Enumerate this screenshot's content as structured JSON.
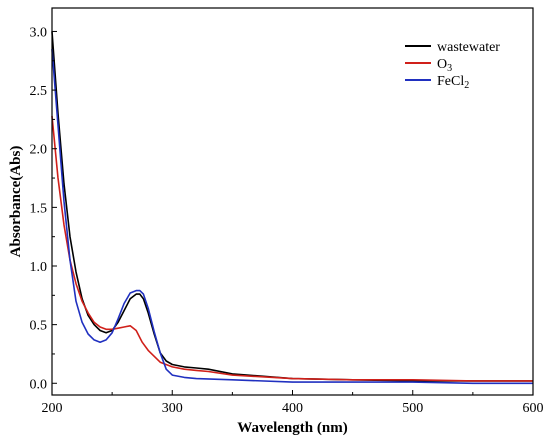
{
  "chart_data": {
    "type": "line",
    "title": "",
    "xlabel": "Wavelength (nm)",
    "ylabel": "Absorbance(Abs)",
    "xlim": [
      200,
      600
    ],
    "ylim": [
      -0.1,
      3.2
    ],
    "x_ticks": [
      200,
      300,
      400,
      500,
      600
    ],
    "y_ticks": [
      0.0,
      0.5,
      1.0,
      1.5,
      2.0,
      2.5,
      3.0
    ],
    "x_tick_labels": [
      "200",
      "300",
      "400",
      "500",
      "600"
    ],
    "y_tick_labels": [
      "0.0",
      "0.5",
      "1.0",
      "1.5",
      "2.0",
      "2.5",
      "3.0"
    ],
    "grid": false,
    "legend_position": "top-right",
    "series": [
      {
        "name": "wastewater",
        "color": "#000000",
        "x": [
          200,
          205,
          210,
          215,
          220,
          225,
          230,
          235,
          240,
          245,
          250,
          255,
          260,
          265,
          270,
          273,
          276,
          280,
          285,
          290,
          295,
          300,
          310,
          320,
          330,
          350,
          400,
          450,
          500,
          550,
          600
        ],
        "y": [
          3.0,
          2.3,
          1.7,
          1.25,
          0.95,
          0.72,
          0.58,
          0.5,
          0.45,
          0.43,
          0.45,
          0.52,
          0.62,
          0.72,
          0.76,
          0.76,
          0.72,
          0.6,
          0.42,
          0.26,
          0.19,
          0.16,
          0.14,
          0.13,
          0.12,
          0.08,
          0.04,
          0.03,
          0.02,
          0.02,
          0.02
        ]
      },
      {
        "name": "O3",
        "label_base": "O",
        "label_sub": "3",
        "color": "#d0201a",
        "x": [
          200,
          205,
          210,
          215,
          220,
          225,
          230,
          235,
          240,
          245,
          250,
          255,
          260,
          265,
          270,
          275,
          280,
          290,
          300,
          310,
          320,
          330,
          350,
          400,
          450,
          500,
          550,
          600
        ],
        "y": [
          2.28,
          1.75,
          1.35,
          1.05,
          0.85,
          0.7,
          0.6,
          0.52,
          0.48,
          0.46,
          0.46,
          0.47,
          0.48,
          0.49,
          0.45,
          0.35,
          0.28,
          0.18,
          0.14,
          0.12,
          0.11,
          0.1,
          0.07,
          0.04,
          0.03,
          0.03,
          0.02,
          0.02
        ]
      },
      {
        "name": "FeCl2",
        "label_base": "FeCl",
        "label_sub": "2",
        "color": "#2030c0",
        "x": [
          200,
          205,
          210,
          215,
          220,
          225,
          230,
          235,
          240,
          245,
          250,
          255,
          260,
          265,
          270,
          273,
          276,
          280,
          285,
          290,
          295,
          300,
          310,
          320,
          350,
          400,
          450,
          500,
          550,
          600
        ],
        "y": [
          2.85,
          2.2,
          1.55,
          1.05,
          0.7,
          0.52,
          0.42,
          0.37,
          0.35,
          0.37,
          0.43,
          0.55,
          0.68,
          0.77,
          0.79,
          0.79,
          0.76,
          0.64,
          0.44,
          0.26,
          0.12,
          0.07,
          0.05,
          0.04,
          0.03,
          0.01,
          0.01,
          0.01,
          0.0,
          0.0
        ]
      }
    ]
  }
}
